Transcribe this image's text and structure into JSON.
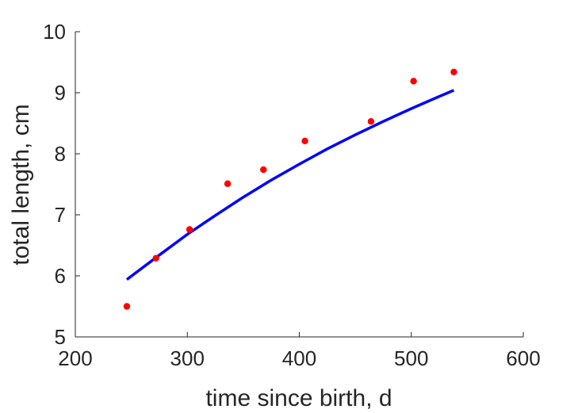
{
  "chart_data": {
    "type": "scatter",
    "xlabel": "time since birth, d",
    "ylabel": "total length, cm",
    "xlim": [
      200,
      600
    ],
    "ylim": [
      5,
      10
    ],
    "xticks": [
      "200",
      "300",
      "400",
      "500",
      "600"
    ],
    "yticks": [
      "5",
      "6",
      "7",
      "8",
      "9",
      "10"
    ],
    "grid": false,
    "series": [
      {
        "kind": "scatter",
        "color": "#ff0000",
        "points": [
          {
            "x": 246,
            "y": 5.5
          },
          {
            "x": 272,
            "y": 6.29
          },
          {
            "x": 302,
            "y": 6.76
          },
          {
            "x": 336,
            "y": 7.51
          },
          {
            "x": 368,
            "y": 7.74
          },
          {
            "x": 405,
            "y": 8.21
          },
          {
            "x": 464,
            "y": 8.53
          },
          {
            "x": 502,
            "y": 9.19
          },
          {
            "x": 538,
            "y": 9.34
          }
        ]
      },
      {
        "kind": "line",
        "color": "#0000ff",
        "points": [
          {
            "x": 246,
            "y": 5.94
          },
          {
            "x": 275,
            "y": 6.34
          },
          {
            "x": 300,
            "y": 6.68
          },
          {
            "x": 325,
            "y": 6.99
          },
          {
            "x": 350,
            "y": 7.29
          },
          {
            "x": 375,
            "y": 7.57
          },
          {
            "x": 400,
            "y": 7.83
          },
          {
            "x": 425,
            "y": 8.08
          },
          {
            "x": 450,
            "y": 8.31
          },
          {
            "x": 475,
            "y": 8.53
          },
          {
            "x": 500,
            "y": 8.74
          },
          {
            "x": 525,
            "y": 8.94
          },
          {
            "x": 538,
            "y": 9.04
          }
        ]
      }
    ]
  }
}
